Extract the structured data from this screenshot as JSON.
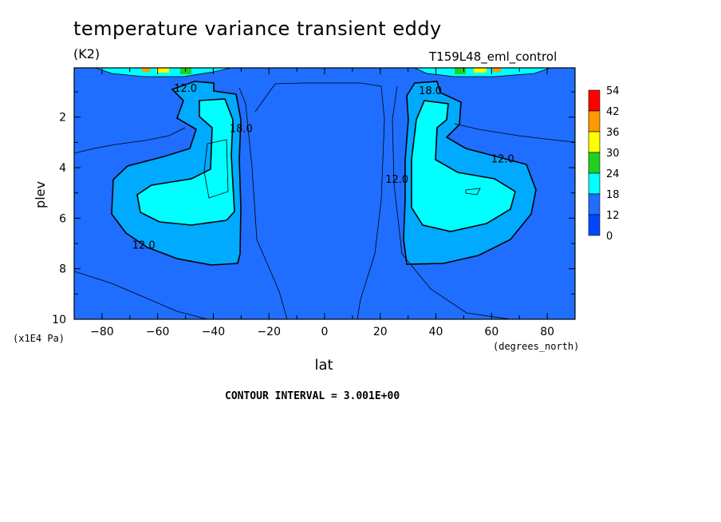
{
  "header": {
    "title": "temperature variance transient eddy",
    "units": "(K2)",
    "run": "T159L48_eml_control"
  },
  "footer": {
    "contour_interval": "CONTOUR INTERVAL = 3.001E+00"
  },
  "chart_data": {
    "type": "heatmap",
    "title": "temperature variance transient eddy",
    "xlabel": "lat",
    "ylabel": "plev",
    "x_units": "(degrees_north)",
    "y_units": "(x1E4 Pa)",
    "xlim": [
      -90,
      90
    ],
    "ylim": [
      10,
      0.05
    ],
    "x_ticks": [
      -80,
      -60,
      -40,
      -20,
      0,
      20,
      40,
      60,
      80
    ],
    "y_ticks": [
      2,
      4,
      6,
      8,
      10
    ],
    "contour_labels": [
      {
        "text": "12.0",
        "lat": -50,
        "plev": 1.0
      },
      {
        "text": "18.0",
        "lat": -30,
        "plev": 2.6
      },
      {
        "text": "12.0",
        "lat": -65,
        "plev": 7.2
      },
      {
        "text": "18.0",
        "lat": 38,
        "plev": 1.1
      },
      {
        "text": "12.0",
        "lat": 64,
        "plev": 3.8
      },
      {
        "text": "12.0",
        "lat": 26,
        "plev": 4.6
      }
    ],
    "colorbar": {
      "levels": [
        "54",
        "42",
        "36",
        "30",
        "24",
        "18",
        "12",
        "0"
      ],
      "colors": [
        "#ff0000",
        "#ff9a00",
        "#ffff00",
        "#1fd21f",
        "#00ffff",
        "#1f6eff",
        "#0048ff"
      ],
      "fill": "#0a7bf0"
    }
  }
}
